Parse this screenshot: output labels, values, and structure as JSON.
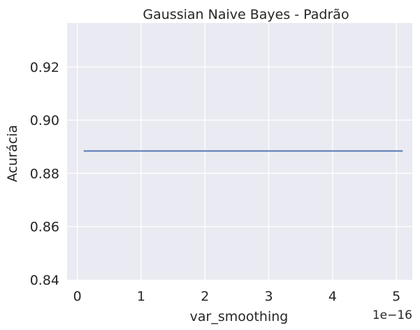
{
  "chart_data": {
    "type": "line",
    "title": "Gaussian Naive Bayes - Padrão",
    "xlabel": "var_smoothing",
    "ylabel": "Acurácia",
    "x_offset_label": "1e−16",
    "x_ticks": [
      "0",
      "1",
      "2",
      "3",
      "4",
      "5"
    ],
    "y_ticks": [
      "0.84",
      "0.86",
      "0.88",
      "0.90",
      "0.92"
    ],
    "xlim": [
      -0.16,
      5.25
    ],
    "ylim": [
      0.84,
      0.9365
    ],
    "grid": true,
    "background": "#eaeaf2",
    "line_color": "#4c72b0",
    "series": [
      {
        "x": [
          0.1,
          5.1
        ],
        "y": [
          0.8884,
          0.8884
        ]
      }
    ]
  }
}
